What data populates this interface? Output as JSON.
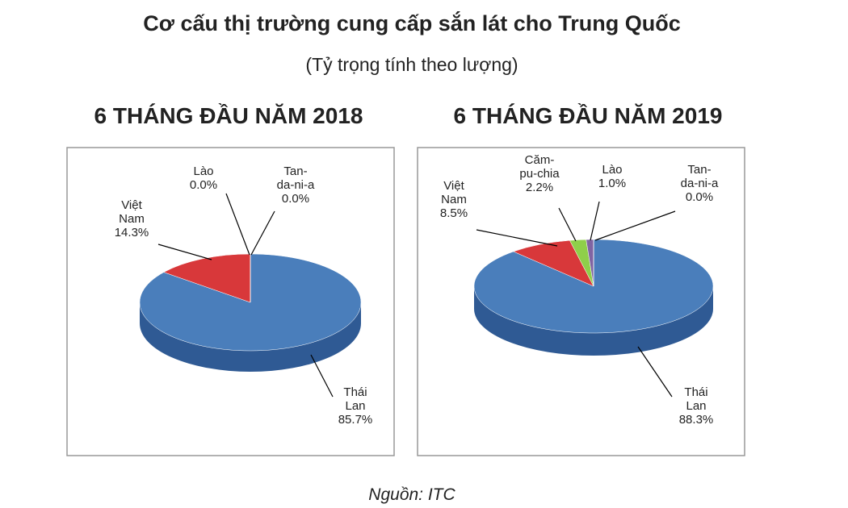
{
  "title": "Cơ cấu thị trường cung cấp sắn lát cho Trung Quốc",
  "subtitle": "(Tỷ trọng tính theo lượng)",
  "source": "Nguồn: ITC",
  "chart_data": [
    {
      "type": "pie",
      "title": "6 THÁNG ĐẦU NĂM 2018",
      "categories": [
        "Thái Lan",
        "Việt Nam",
        "Lào",
        "Tan-da-ni-a"
      ],
      "values": [
        85.7,
        14.3,
        0.0,
        0.0
      ],
      "value_labels": [
        "85.7%",
        "14.3%",
        "0.0%",
        "0.0%"
      ],
      "colors": [
        "#4a7ebb",
        "#d8383a",
        "#8064a2",
        "#4bacc6"
      ]
    },
    {
      "type": "pie",
      "title": "6 THÁNG ĐẦU NĂM 2019",
      "categories": [
        "Thái Lan",
        "Việt Nam",
        "Căm-pu-chia",
        "Lào",
        "Tan-da-ni-a"
      ],
      "values": [
        88.3,
        8.5,
        2.2,
        1.0,
        0.0
      ],
      "value_labels": [
        "88.3%",
        "8.5%",
        "2.2%",
        "1.0%",
        "0.0%"
      ],
      "colors": [
        "#4a7ebb",
        "#d8383a",
        "#8fcf4a",
        "#8064a2",
        "#4bacc6"
      ]
    }
  ]
}
